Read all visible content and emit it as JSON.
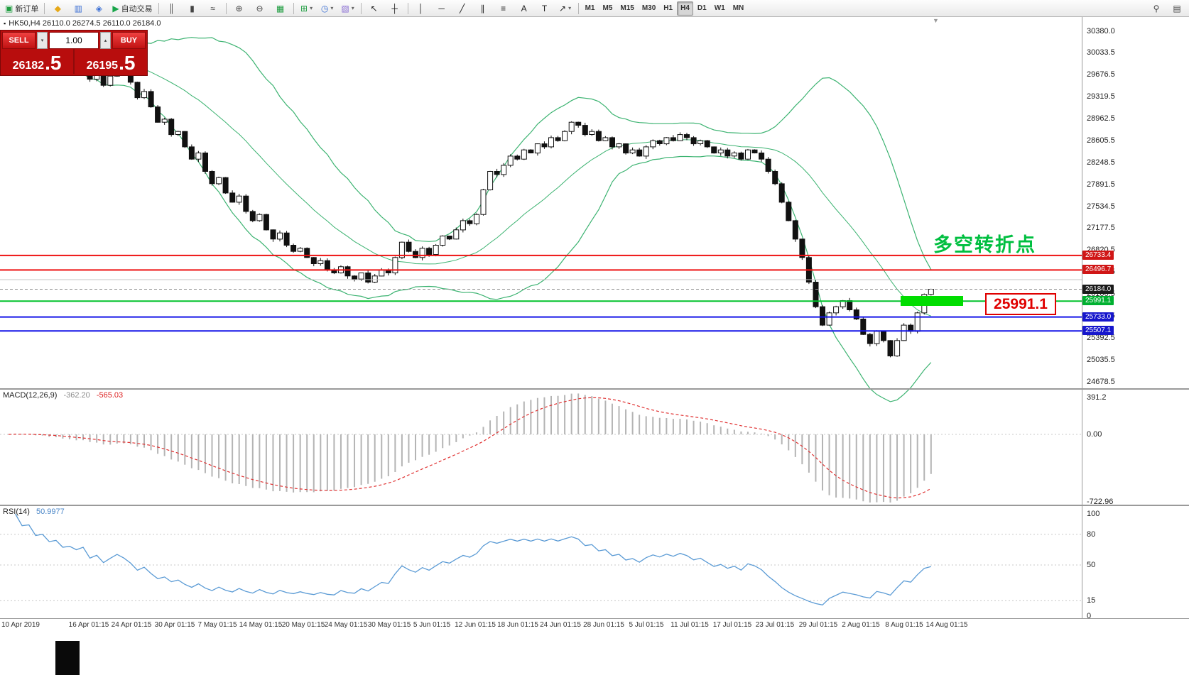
{
  "toolbar": {
    "items": [
      {
        "name": "new-order-button",
        "glyph": "▣",
        "color": "#1f9d40",
        "label": "新订单"
      },
      {
        "sep": true
      },
      {
        "name": "profiles-button",
        "glyph": "◆",
        "color": "#e6a817"
      },
      {
        "name": "market-watch-button",
        "glyph": "▥",
        "color": "#3b6fd4"
      },
      {
        "name": "navigator-button",
        "glyph": "◈",
        "color": "#3b6fd4"
      },
      {
        "name": "autotrading-button",
        "glyph": "▶",
        "color": "#18a54a",
        "label": "自动交易"
      },
      {
        "sep": true
      },
      {
        "name": "bar-chart-button",
        "glyph": "║",
        "color": "#444"
      },
      {
        "name": "candlestick-chart-button",
        "glyph": "▮",
        "color": "#444"
      },
      {
        "name": "line-chart-button",
        "glyph": "≈",
        "color": "#444"
      },
      {
        "sep": true
      },
      {
        "name": "zoom-in-button",
        "glyph": "⊕",
        "color": "#444"
      },
      {
        "name": "zoom-out-button",
        "glyph": "⊖",
        "color": "#444"
      },
      {
        "name": "grid-button",
        "glyph": "▦",
        "color": "#1f9d40"
      },
      {
        "sep": true
      },
      {
        "name": "indicators-button",
        "glyph": "⊞",
        "color": "#1f9d40",
        "caret": true
      },
      {
        "name": "periods-button",
        "glyph": "◷",
        "color": "#3b6fd4",
        "caret": true
      },
      {
        "name": "templates-button",
        "glyph": "▧",
        "color": "#8a6fd4",
        "caret": true
      },
      {
        "sep": true
      },
      {
        "name": "cursor-button",
        "glyph": "↖",
        "color": "#222"
      },
      {
        "name": "crosshair-button",
        "glyph": "┼",
        "color": "#222"
      },
      {
        "sep": true
      },
      {
        "name": "vertical-line-button",
        "glyph": "│",
        "color": "#222"
      },
      {
        "name": "horizontal-line-button",
        "glyph": "─",
        "color": "#222"
      },
      {
        "name": "trendline-button",
        "glyph": "╱",
        "color": "#222"
      },
      {
        "name": "channel-button",
        "glyph": "∥",
        "color": "#222"
      },
      {
        "name": "fibonacci-button",
        "glyph": "≡",
        "color": "#222"
      },
      {
        "name": "text-button",
        "glyph": "A",
        "color": "#222"
      },
      {
        "name": "label-button",
        "glyph": "T",
        "color": "#222"
      },
      {
        "name": "arrows-button",
        "glyph": "↗",
        "color": "#222",
        "caret": true
      },
      {
        "sep": true
      }
    ],
    "timeframes": [
      "M1",
      "M5",
      "M15",
      "M30",
      "H1",
      "H4",
      "D1",
      "W1",
      "MN"
    ],
    "active_timeframe": "H4",
    "right_items": [
      {
        "name": "search-button",
        "glyph": "⚲",
        "color": "#444"
      },
      {
        "name": "new-window-button",
        "glyph": "▤",
        "color": "#444"
      }
    ]
  },
  "chart": {
    "title": "HK50,H4 26110.0 26274.5 26110.0 26184.0",
    "annotation": {
      "text": "多空转折点",
      "color": "#00bf40"
    },
    "big_label": {
      "text": "25991.1",
      "color": "#e00000"
    },
    "highlight_color": "#00dd00",
    "shift_marker": "▼"
  },
  "trade_panel": {
    "sell_label": "SELL",
    "buy_label": "BUY",
    "volume": "1.00",
    "sell_price_main": "26182",
    "sell_price_big": ".5",
    "buy_price_main": "26195",
    "buy_price_big": ".5"
  },
  "macd": {
    "name": "MACD(12,26,9)",
    "value": "-362.20",
    "signal": "-565.03",
    "axis_labels": [
      "391.2",
      "0.00",
      "-722.96"
    ]
  },
  "rsi": {
    "name": "RSI(14)",
    "value": "50.9977",
    "axis_labels": [
      "100",
      "80",
      "50",
      "15",
      "0"
    ],
    "levels": [
      80,
      50,
      15
    ]
  },
  "chart_data": {
    "type": "candlestick",
    "symbol": "HK50",
    "timeframe": "H4",
    "ohlc": {
      "open": "26110.0",
      "high": "26274.5",
      "low": "26110.0",
      "close": "26184.0"
    },
    "price_range": [
      24678.5,
      30380.0
    ],
    "closes": [
      30050,
      30150,
      29980,
      30080,
      29900,
      29990,
      29850,
      29920,
      29780,
      29820,
      29750,
      29850,
      29600,
      29700,
      29500,
      29650,
      29800,
      29700,
      29550,
      29300,
      29400,
      29150,
      28900,
      28950,
      28700,
      28750,
      28500,
      28300,
      28400,
      28100,
      27900,
      28000,
      27750,
      27600,
      27700,
      27450,
      27300,
      27400,
      27150,
      27000,
      27100,
      26900,
      26800,
      26850,
      26700,
      26600,
      26650,
      26500,
      26450,
      26550,
      26400,
      26350,
      26450,
      26300,
      26400,
      26500,
      26450,
      26700,
      26950,
      26800,
      26700,
      26850,
      26750,
      26900,
      27050,
      27000,
      27150,
      27300,
      27250,
      27400,
      27800,
      28100,
      28050,
      28200,
      28350,
      28300,
      28450,
      28400,
      28550,
      28500,
      28650,
      28600,
      28750,
      28900,
      28850,
      28700,
      28750,
      28600,
      28650,
      28500,
      28550,
      28400,
      28450,
      28350,
      28500,
      28600,
      28550,
      28650,
      28600,
      28700,
      28650,
      28550,
      28600,
      28500,
      28400,
      28450,
      28350,
      28400,
      28300,
      28450,
      28400,
      28300,
      28100,
      27900,
      27600,
      27300,
      27000,
      26700,
      26300,
      25900,
      25600,
      25800,
      25900,
      26000,
      25850,
      25700,
      25450,
      25300,
      25500,
      25350,
      25100,
      25350,
      25600,
      25500,
      25800,
      26100,
      26184
    ],
    "indicators": {
      "bollinger": {
        "period": 20,
        "deviation": 2,
        "color": "#3cb371"
      },
      "macd": {
        "fast": 12,
        "slow": 26,
        "signal": 9,
        "hist_color": "#b4b4b4",
        "signal_color": "#e03131"
      },
      "rsi": {
        "period": 14,
        "color": "#5b9bd5"
      }
    },
    "levels": [
      {
        "price": 26733.4,
        "color": "#ee1111",
        "width": 2,
        "label": "26733.4",
        "badge": "#d01616"
      },
      {
        "price": 26496.7,
        "color": "#ee1111",
        "width": 2,
        "label": "26496.7",
        "badge": "#d01616"
      },
      {
        "price": 26340.0,
        "color": "#c4c4c4",
        "width": 1
      },
      {
        "price": 26184.0,
        "color": "#909090",
        "width": 1,
        "dash": true,
        "label": "26184.0",
        "badge": "#1a1a1a"
      },
      {
        "price": 25991.1,
        "color": "#00c22a",
        "width": 2,
        "label": "25991.1",
        "badge": "#00b030"
      },
      {
        "price": 25733.0,
        "color": "#1414e8",
        "width": 2,
        "label": "25733.0",
        "badge": "#1616cc"
      },
      {
        "price": 25507.1,
        "color": "#1414e8",
        "width": 2,
        "label": "25507.1",
        "badge": "#1616cc"
      }
    ],
    "y_ticks": [
      30380.0,
      30033.5,
      29676.5,
      29319.5,
      28962.5,
      28605.5,
      28248.5,
      27891.5,
      27534.5,
      27177.5,
      26820.5,
      26463.5,
      26106.5,
      25749.5,
      25392.5,
      25035.5,
      24678.5
    ],
    "x_labels": [
      "10 Apr 2019",
      "16 Apr 01:15",
      "24 Apr 01:15",
      "30 Apr 01:15",
      "7 May 01:15",
      "14 May 01:15",
      "20 May 01:15",
      "24 May 01:15",
      "30 May 01:15",
      "5 Jun 01:15",
      "12 Jun 01:15",
      "18 Jun 01:15",
      "24 Jun 01:15",
      "28 Jun 01:15",
      "5 Jul 01:15",
      "11 Jul 01:15",
      "17 Jul 01:15",
      "23 Jul 01:15",
      "29 Jul 01:15",
      "2 Aug 01:15",
      "8 Aug 01:15",
      "14 Aug 01:15"
    ]
  }
}
